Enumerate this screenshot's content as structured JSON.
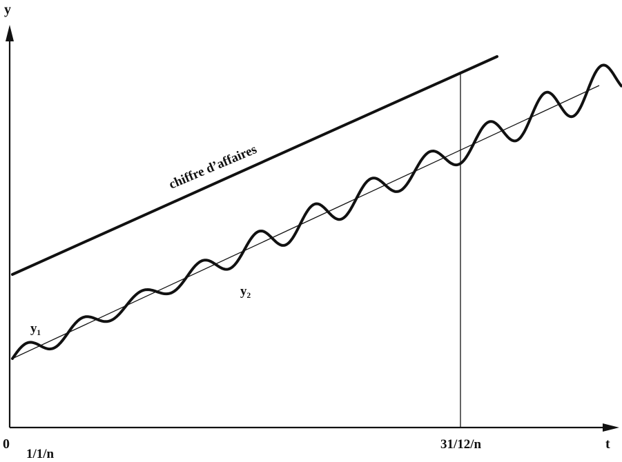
{
  "axes": {
    "y_label": "y",
    "x_label": "t",
    "origin_label": "0"
  },
  "ticks": {
    "start": "1/1/n",
    "end": "31/12/n"
  },
  "curves": {
    "turnover_label": "chiffre d’affaires",
    "y1_label": "y₁",
    "y2_label": "y₂"
  }
}
